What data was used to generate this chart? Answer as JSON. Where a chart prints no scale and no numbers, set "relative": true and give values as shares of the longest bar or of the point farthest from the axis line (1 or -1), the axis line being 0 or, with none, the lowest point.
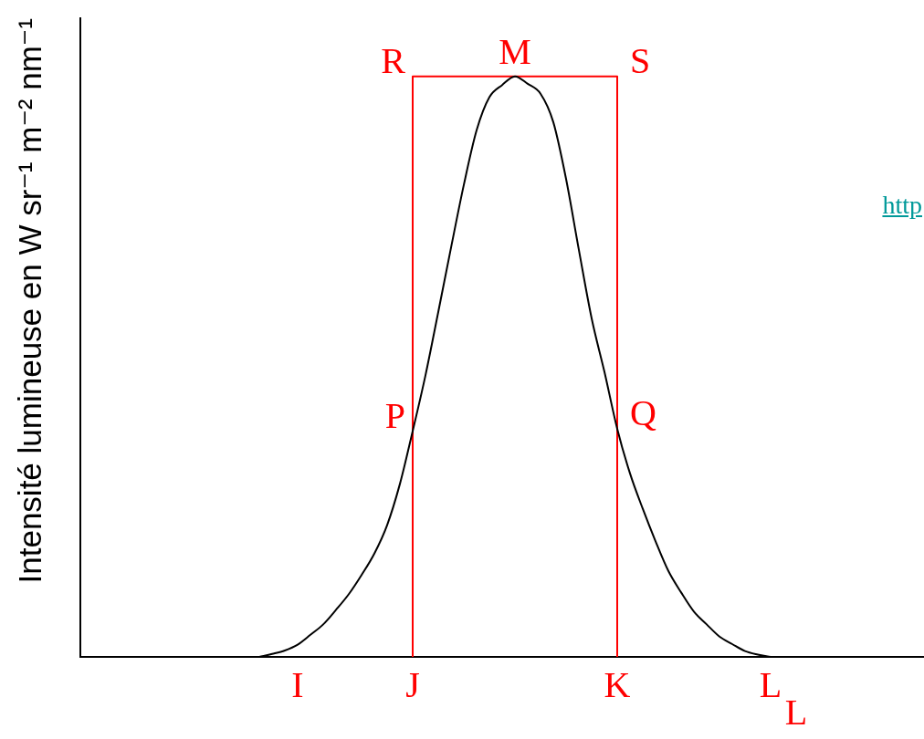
{
  "chart_data": {
    "type": "line",
    "relative": true,
    "ylabel": "Intensité lumineuse en W sr⁻¹ m⁻² nm⁻¹",
    "marker": "none",
    "categories": [
      null,
      null,
      null,
      null,
      null,
      null,
      null,
      null,
      null,
      null,
      null,
      null,
      null,
      null,
      null,
      null,
      null,
      "I",
      null,
      null,
      null,
      null,
      null,
      null,
      null,
      null,
      "J",
      null,
      null,
      null,
      null,
      null,
      null,
      null,
      null,
      null,
      null,
      null,
      null,
      null,
      null,
      null,
      "K",
      null,
      null,
      null,
      null,
      null,
      null,
      null,
      null,
      null,
      null,
      null,
      "L",
      null,
      "L",
      null,
      null,
      null,
      null,
      null,
      null,
      null,
      null,
      null,
      null
    ],
    "series": [
      {
        "color": "#000000",
        "values": [
          null,
          null,
          null,
          null,
          null,
          null,
          null,
          null,
          null,
          null,
          null,
          null,
          null,
          null,
          0,
          0.005,
          0.011,
          0.021,
          0.038,
          0.056,
          0.081,
          0.108,
          0.141,
          0.178,
          0.227,
          0.298,
          0.389,
          0.485,
          0.594,
          0.705,
          0.813,
          0.907,
          0.964,
          0.985,
          1,
          0.987,
          0.97,
          0.921,
          0.823,
          0.701,
          0.583,
          0.491,
          0.393,
          0.316,
          0.255,
          0.199,
          0.148,
          0.111,
          0.078,
          0.056,
          0.035,
          0.022,
          0.01,
          0.004,
          0,
          null,
          null,
          null,
          null,
          null,
          null,
          null,
          null,
          null,
          null,
          null,
          null
        ]
      },
      {
        "color": "#ff0000",
        "x": [
          "J",
          "J",
          "K",
          "K"
        ],
        "values": [
          0,
          1,
          1,
          0
        ]
      }
    ],
    "annotations": [
      {
        "text": "R",
        "x": "J",
        "y": 1
      },
      {
        "text": "M",
        "y": 1
      },
      {
        "text": "S",
        "x": "K",
        "y": 1
      },
      {
        "text": "P",
        "x": "J",
        "y": 0.389
      },
      {
        "text": "Q",
        "x": "K",
        "y": 0.393
      },
      "http"
    ]
  }
}
